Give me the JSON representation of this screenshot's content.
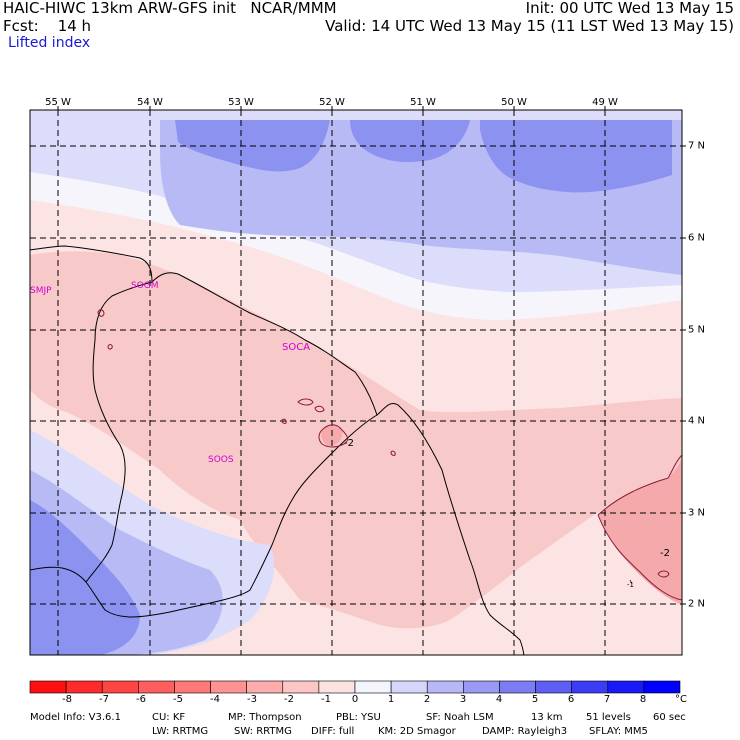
{
  "header": {
    "model": "HAIC-HIWC 13km ARW-GFS init",
    "org": "NCAR/MMM",
    "init": "Init: 00 UTC Wed 13 May 15",
    "fcst_label": "Fcst:",
    "fcst_value": "14 h",
    "valid": "Valid: 14 UTC Wed 13 May 15 (11 LST Wed 13 May 15)",
    "field": "Lifted index"
  },
  "map": {
    "longitudes": [
      "55 W",
      "54 W",
      "53 W",
      "52 W",
      "51 W",
      "50 W",
      "49 W"
    ],
    "latitudes": [
      "7 N",
      "6 N",
      "5 N",
      "4 N",
      "3 N",
      "2 N"
    ],
    "stations": [
      "SMJP",
      "SOGM",
      "SOCA",
      "SOOS"
    ],
    "contour_labels": [
      "-2",
      "-2",
      "-1"
    ],
    "colors": {
      "strong_blue": "#8c92f0",
      "medium_blue": "#b8baf6",
      "light_blue": "#dcdcfb",
      "white": "#f7f5fc",
      "light_pink": "#fce4e4",
      "pink": "#f8c9c9",
      "deep_pink": "#f4aaaa",
      "contour": "#8b1a3a"
    }
  },
  "colorbar": {
    "labels": [
      "-8",
      "-7",
      "-6",
      "-5",
      "-4",
      "-3",
      "-2",
      "-1",
      "0",
      "1",
      "2",
      "3",
      "4",
      "5",
      "6",
      "7",
      "8"
    ],
    "unit": "°C",
    "colors": [
      "#ff1010",
      "#ff2a2a",
      "#ff4444",
      "#ff5e5e",
      "#ff7878",
      "#ff9292",
      "#fcacac",
      "#fcc6c6",
      "#fde2e2",
      "#f4f4fc",
      "#d6d6fa",
      "#b8b8f8",
      "#9a9af6",
      "#7c7cf4",
      "#5e5ef4",
      "#3c3cf6",
      "#1a1af8",
      "#0000ff"
    ]
  },
  "model_info": {
    "line1": [
      "Model Info: V3.6.1",
      "CU: KF",
      "MP: Thompson",
      "PBL: YSU",
      "SF: Noah LSM",
      "13 km",
      "51 levels",
      "60 sec"
    ],
    "line2": [
      "LW: RRTMG",
      "SW: RRTMG",
      "DIFF: full",
      "KM: 2D Smagor",
      "DAMP: Rayleigh3",
      "SFLAY: MM5"
    ]
  }
}
